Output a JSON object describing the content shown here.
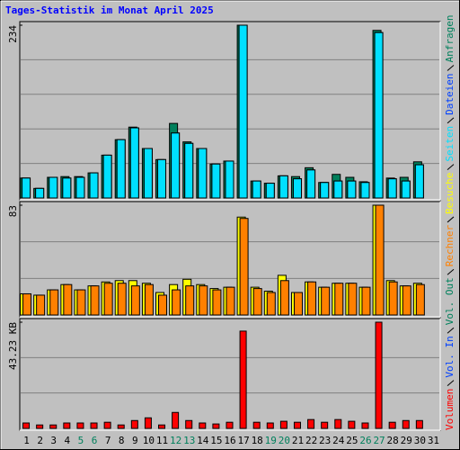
{
  "chart_data": [
    {
      "type": "bar",
      "title": "Tages-Statistik im Monat April 2025",
      "title_color": "#0000ff",
      "ylim": [
        0,
        234
      ],
      "yticks": [
        234
      ],
      "grid_divisions": 5,
      "series": [
        {
          "name": "Anfragen",
          "color": "#00805c",
          "values": [
            27,
            13,
            28,
            29,
            29,
            34,
            58,
            79,
            96,
            67,
            52,
            101,
            76,
            67,
            46,
            50,
            234,
            23,
            20,
            30,
            29,
            41,
            21,
            32,
            28,
            22,
            227,
            27,
            28,
            49,
            null
          ]
        },
        {
          "name": "Dateien",
          "color": "#0040ff",
          "values": [
            27,
            13,
            28,
            27,
            28,
            34,
            58,
            79,
            95,
            67,
            52,
            88,
            74,
            67,
            46,
            50,
            234,
            23,
            20,
            30,
            26,
            38,
            21,
            23,
            23,
            21,
            224,
            26,
            23,
            45,
            null
          ]
        },
        {
          "name": "Seiten",
          "color": "#00e0ff",
          "values": [
            27,
            13,
            28,
            27,
            28,
            34,
            58,
            79,
            95,
            67,
            52,
            88,
            74,
            67,
            46,
            50,
            234,
            23,
            20,
            30,
            26,
            38,
            21,
            23,
            23,
            21,
            224,
            26,
            23,
            45,
            null
          ]
        }
      ]
    },
    {
      "type": "bar",
      "ylim": [
        0,
        83
      ],
      "yticks": [
        83
      ],
      "grid_divisions": 3,
      "series": [
        {
          "name": "Besuche",
          "color": "#ffff00",
          "values": [
            16,
            15,
            19,
            23,
            19,
            22,
            25,
            26,
            26,
            24,
            17,
            23,
            27,
            23,
            20,
            21,
            74,
            21,
            18,
            30,
            17,
            25,
            21,
            24,
            24,
            21,
            83,
            26,
            22,
            24,
            null
          ]
        },
        {
          "name": "Rechner",
          "color": "#ff8000",
          "values": [
            16,
            15,
            19,
            23,
            19,
            22,
            24,
            24,
            22,
            23,
            15,
            19,
            22,
            22,
            19,
            21,
            73,
            20,
            17,
            26,
            17,
            25,
            21,
            24,
            24,
            21,
            83,
            25,
            22,
            23,
            null
          ]
        }
      ]
    },
    {
      "type": "bar",
      "ylim": [
        0,
        43.23
      ],
      "yticks": [
        {
          "value": 43.23,
          "label": "43.23 KB"
        }
      ],
      "grid_divisions": 3,
      "categories": [
        1,
        2,
        3,
        4,
        5,
        6,
        7,
        8,
        9,
        10,
        11,
        12,
        13,
        14,
        15,
        16,
        17,
        18,
        19,
        20,
        21,
        22,
        23,
        24,
        25,
        26,
        27,
        28,
        29,
        30,
        31
      ],
      "highlight_categories": [
        4,
        5,
        11,
        12,
        18,
        19,
        25,
        26
      ],
      "highlight_color": "#00805c",
      "series": [
        {
          "name": "Vol. Out",
          "color": "#00805c",
          "values": [
            0,
            0,
            0,
            0,
            0,
            0,
            0,
            0,
            0,
            0,
            0,
            0,
            0,
            0,
            0,
            0,
            0,
            0,
            0,
            0,
            0,
            0,
            0,
            0,
            0,
            0,
            0,
            0,
            0,
            0,
            null
          ]
        },
        {
          "name": "Vol. In",
          "color": "#0040ff",
          "values": [
            0,
            0,
            0,
            0,
            0,
            0,
            0,
            0,
            0,
            0,
            0,
            0,
            0,
            0,
            0,
            0,
            0,
            0,
            0,
            0,
            0,
            0,
            0,
            0,
            0,
            0,
            0,
            0,
            0,
            0,
            null
          ]
        },
        {
          "name": "Volumen",
          "color": "#ff0000",
          "values": [
            2.2,
            1.4,
            1.4,
            2.2,
            2.2,
            2.2,
            2.5,
            1.4,
            3.2,
            4.3,
            1.4,
            6.5,
            3.2,
            2.2,
            1.8,
            2.5,
            39.6,
            2.5,
            2.2,
            2.9,
            2.5,
            3.6,
            2.5,
            3.6,
            2.9,
            2.2,
            43.23,
            2.5,
            3.2,
            3.2,
            null
          ]
        }
      ]
    }
  ]
}
